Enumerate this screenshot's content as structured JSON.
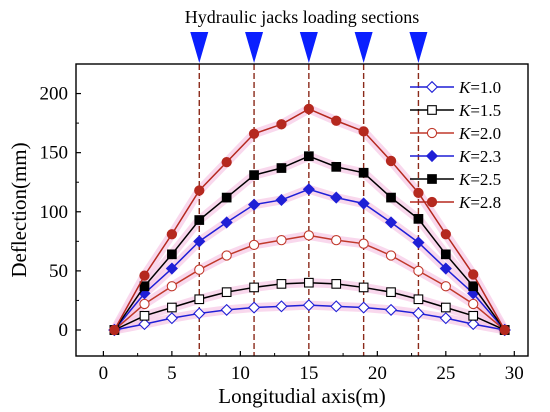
{
  "chart_data": {
    "type": "line",
    "annotation": "Hydraulic jacks loading sections",
    "xlabel": "Longitudial axis(m)",
    "ylabel": "Deflection(mm)",
    "xlim": [
      -2,
      31
    ],
    "ylim": [
      -22,
      225
    ],
    "xticks": [
      0,
      5,
      10,
      15,
      20,
      25,
      30
    ],
    "yticks": [
      0,
      50,
      100,
      150,
      200
    ],
    "loading_sections_x": [
      7,
      11,
      15,
      19,
      23
    ],
    "legend_position": "top-right",
    "x": [
      0.8,
      3,
      5,
      7,
      9,
      11,
      13,
      15,
      17,
      19,
      21,
      23,
      25,
      27,
      29.3
    ],
    "series": [
      {
        "name": "K=1.0",
        "var": "K",
        "val": "=1.0",
        "color": "#1f1fd6",
        "marker": "diamond-open",
        "values": [
          0,
          5,
          10,
          14,
          17,
          19,
          20,
          21,
          20,
          19,
          17,
          14,
          10,
          5,
          0
        ]
      },
      {
        "name": "K=1.5",
        "var": "K",
        "val": "=1.5",
        "color": "#000000",
        "marker": "square-open",
        "values": [
          0,
          12,
          19,
          26,
          32,
          36,
          39,
          40,
          39,
          36,
          32,
          26,
          19,
          12,
          0
        ]
      },
      {
        "name": "K=2.0",
        "var": "K",
        "val": "=2.0",
        "color": "#c0392b",
        "marker": "circle-open",
        "values": [
          0,
          22,
          37,
          51,
          63,
          72,
          76,
          80,
          76,
          73,
          63,
          50,
          37,
          22,
          0
        ]
      },
      {
        "name": "K=2.3",
        "var": "K",
        "val": "=2.3",
        "color": "#1f1fd6",
        "marker": "diamond-filled",
        "values": [
          0,
          31,
          52,
          75,
          91,
          106,
          110,
          119,
          112,
          107,
          91,
          74,
          52,
          31,
          0
        ]
      },
      {
        "name": "K=2.5",
        "var": "K",
        "val": "=2.5",
        "color": "#000000",
        "marker": "square-filled",
        "values": [
          0,
          37,
          64,
          93,
          112,
          131,
          137,
          147,
          138,
          133,
          112,
          94,
          64,
          37,
          0
        ]
      },
      {
        "name": "K=2.8",
        "var": "K",
        "val": "=2.8",
        "color": "#b5291f",
        "marker": "circle-filled",
        "values": [
          0,
          46,
          81,
          118,
          142,
          166,
          174,
          187,
          177,
          168,
          143,
          116,
          81,
          47,
          0
        ]
      }
    ],
    "colors": {
      "jack_marker": "#0a1fff",
      "guide_line": "#8b2a1a",
      "halo": "#f7c8e6"
    }
  }
}
